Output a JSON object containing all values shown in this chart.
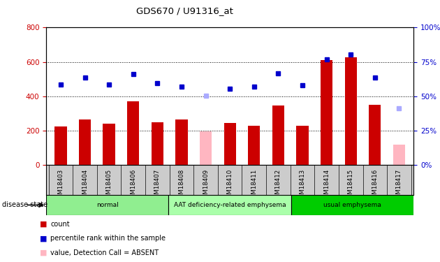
{
  "title": "GDS670 / U91316_at",
  "samples": [
    "GSM18403",
    "GSM18404",
    "GSM18405",
    "GSM18406",
    "GSM18407",
    "GSM18408",
    "GSM18409",
    "GSM18410",
    "GSM18411",
    "GSM18412",
    "GSM18413",
    "GSM18414",
    "GSM18415",
    "GSM18416",
    "GSM18417"
  ],
  "count_values": [
    225,
    265,
    240,
    370,
    250,
    265,
    null,
    245,
    230,
    345,
    230,
    610,
    625,
    350,
    null
  ],
  "absent_value_values": [
    null,
    null,
    null,
    null,
    null,
    null,
    195,
    null,
    null,
    null,
    null,
    null,
    null,
    null,
    120
  ],
  "percentile_values": [
    470,
    510,
    470,
    530,
    475,
    455,
    null,
    445,
    455,
    535,
    465,
    615,
    645,
    510,
    null
  ],
  "absent_rank_values": [
    null,
    null,
    null,
    null,
    null,
    null,
    405,
    null,
    null,
    null,
    null,
    null,
    null,
    null,
    330
  ],
  "disease_groups": [
    {
      "label": "normal",
      "start": 0,
      "end": 5,
      "color": "#90EE90"
    },
    {
      "label": "AAT deficiency-related emphysema",
      "start": 5,
      "end": 10,
      "color": "#AAFFAA"
    },
    {
      "label": "usual emphysema",
      "start": 10,
      "end": 15,
      "color": "#00CC00"
    }
  ],
  "ylim_left": [
    0,
    800
  ],
  "ylim_right": [
    0,
    100
  ],
  "left_ticks": [
    0,
    200,
    400,
    600,
    800
  ],
  "right_ticks": [
    0,
    25,
    50,
    75,
    100
  ],
  "count_color": "#CC0000",
  "absent_value_color": "#FFB6C1",
  "percentile_color": "#0000CC",
  "absent_rank_color": "#AAAAFF",
  "left_tick_color": "#CC0000",
  "right_tick_color": "#0000CC",
  "grid_color": "#000000",
  "plot_bg_color": "#FFFFFF",
  "xtick_bg_color": "#CCCCCC"
}
